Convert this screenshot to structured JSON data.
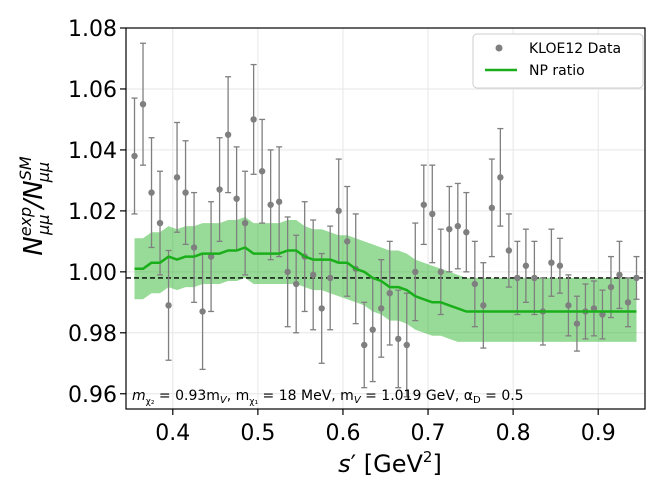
{
  "chart_data": {
    "type": "scatter",
    "title": "",
    "xlabel": {
      "main": "s",
      "prime": "′",
      "unit_open": " [GeV",
      "unit_sup": "2",
      "unit_close": "]"
    },
    "ylabel": {
      "main": "N",
      "sub_num": "μμ",
      "sup_num": "exp",
      "slash": "/N",
      "sub_den": "μμ",
      "sup_den": "SM"
    },
    "xlim": [
      0.345,
      0.955
    ],
    "ylim": [
      0.955,
      1.08
    ],
    "xticks": [
      0.4,
      0.5,
      0.6,
      0.7,
      0.8,
      0.9
    ],
    "xtick_labels": [
      "0.4",
      "0.5",
      "0.6",
      "0.7",
      "0.8",
      "0.9"
    ],
    "yticks": [
      0.96,
      0.98,
      1.0,
      1.02,
      1.04,
      1.06,
      1.08
    ],
    "ytick_labels": [
      "0.96",
      "0.98",
      "1.00",
      "1.02",
      "1.04",
      "1.06",
      "1.08"
    ],
    "grid": true,
    "reference_line": {
      "y": 0.998,
      "style": "dashed",
      "color": "#000000"
    },
    "legend": {
      "position": "top-right",
      "entries": [
        {
          "label": "KLOE12 Data",
          "marker": "dot",
          "color": "#7f7f7f"
        },
        {
          "label": "NP ratio",
          "marker": "line",
          "color": "#1aaf1a"
        }
      ]
    },
    "annotation": {
      "m_chi2": "m",
      "m_chi2_sub": "χ₂",
      "m_chi2_eq": " = 0.93m",
      "m_chi2_V": "V",
      "m_chi1": ", m",
      "m_chi1_sub": "χ₁",
      "m_chi1_eq": " = 18 MeV, m",
      "m_V_sub": "V",
      "m_V_eq": " = 1.019 GeV,  α",
      "alpha_sub": "D",
      "alpha_eq": " = 0.5"
    },
    "series": [
      {
        "name": "KLOE12 Data",
        "kind": "errorbar",
        "color": "#7f7f7f",
        "x": [
          0.355,
          0.365,
          0.375,
          0.385,
          0.395,
          0.405,
          0.415,
          0.425,
          0.435,
          0.445,
          0.455,
          0.465,
          0.475,
          0.485,
          0.495,
          0.505,
          0.515,
          0.525,
          0.535,
          0.545,
          0.555,
          0.565,
          0.575,
          0.585,
          0.595,
          0.605,
          0.615,
          0.625,
          0.635,
          0.645,
          0.655,
          0.665,
          0.675,
          0.685,
          0.695,
          0.705,
          0.715,
          0.725,
          0.735,
          0.745,
          0.755,
          0.765,
          0.775,
          0.785,
          0.795,
          0.805,
          0.815,
          0.825,
          0.835,
          0.845,
          0.855,
          0.865,
          0.875,
          0.885,
          0.895,
          0.905,
          0.915,
          0.925,
          0.935,
          0.945
        ],
        "y": [
          1.038,
          1.055,
          1.026,
          1.016,
          0.989,
          1.031,
          1.026,
          1.008,
          0.987,
          1.005,
          1.027,
          1.045,
          1.024,
          1.016,
          1.05,
          1.033,
          1.022,
          1.023,
          1.0,
          0.996,
          1.005,
          0.999,
          0.988,
          0.998,
          1.02,
          1.01,
          1.001,
          0.976,
          0.981,
          0.988,
          0.993,
          0.978,
          0.976,
          1.0,
          1.022,
          1.019,
          1.0,
          1.014,
          1.015,
          1.013,
          0.996,
          0.989,
          1.021,
          1.031,
          1.007,
          0.998,
          1.002,
          0.998,
          0.987,
          1.003,
          1.002,
          0.989,
          0.983,
          0.987,
          0.988,
          0.986,
          0.995,
          0.999,
          0.99,
          0.998
        ],
        "err": [
          0.019,
          0.02,
          0.018,
          0.017,
          0.018,
          0.018,
          0.017,
          0.018,
          0.019,
          0.018,
          0.017,
          0.019,
          0.017,
          0.017,
          0.018,
          0.017,
          0.018,
          0.018,
          0.018,
          0.016,
          0.018,
          0.018,
          0.018,
          0.017,
          0.017,
          0.018,
          0.018,
          0.014,
          0.017,
          0.016,
          0.017,
          0.016,
          0.017,
          0.016,
          0.013,
          0.016,
          0.014,
          0.014,
          0.014,
          0.013,
          0.014,
          0.014,
          0.016,
          0.016,
          0.012,
          0.012,
          0.012,
          0.012,
          0.011,
          0.011,
          0.009,
          0.01,
          0.009,
          0.009,
          0.009,
          0.008,
          0.01,
          0.011,
          0.008,
          0.007
        ]
      },
      {
        "name": "NP ratio",
        "kind": "line",
        "color": "#1aaf1a",
        "x": [
          0.355,
          0.365,
          0.375,
          0.385,
          0.395,
          0.405,
          0.415,
          0.425,
          0.435,
          0.445,
          0.455,
          0.465,
          0.475,
          0.485,
          0.495,
          0.505,
          0.515,
          0.525,
          0.535,
          0.545,
          0.555,
          0.565,
          0.575,
          0.585,
          0.595,
          0.605,
          0.615,
          0.625,
          0.635,
          0.645,
          0.655,
          0.665,
          0.675,
          0.685,
          0.695,
          0.705,
          0.715,
          0.725,
          0.735,
          0.745,
          0.755,
          0.765,
          0.775,
          0.785,
          0.795,
          0.805,
          0.815,
          0.825,
          0.835,
          0.845,
          0.855,
          0.865,
          0.875,
          0.885,
          0.895,
          0.905,
          0.915,
          0.925,
          0.935,
          0.945
        ],
        "y": [
          1.001,
          1.001,
          1.003,
          1.003,
          1.005,
          1.004,
          1.005,
          1.005,
          1.006,
          1.006,
          1.006,
          1.007,
          1.007,
          1.008,
          1.006,
          1.006,
          1.006,
          1.006,
          1.007,
          1.007,
          1.005,
          1.004,
          1.004,
          1.004,
          1.003,
          1.003,
          1.001,
          1.0,
          0.998,
          0.997,
          0.995,
          0.995,
          0.994,
          0.992,
          0.991,
          0.99,
          0.99,
          0.989,
          0.988,
          0.987,
          0.987,
          0.987,
          0.987,
          0.987,
          0.987,
          0.987,
          0.987,
          0.987,
          0.987,
          0.987,
          0.987,
          0.987,
          0.987,
          0.987,
          0.987,
          0.987,
          0.987,
          0.987,
          0.987,
          0.987
        ],
        "band_low": [
          0.991,
          0.991,
          0.993,
          0.993,
          0.995,
          0.994,
          0.995,
          0.995,
          0.996,
          0.996,
          0.996,
          0.997,
          0.997,
          0.998,
          0.996,
          0.996,
          0.996,
          0.996,
          0.996,
          0.996,
          0.995,
          0.994,
          0.994,
          0.993,
          0.992,
          0.991,
          0.99,
          0.989,
          0.987,
          0.986,
          0.984,
          0.984,
          0.983,
          0.981,
          0.98,
          0.979,
          0.979,
          0.978,
          0.977,
          0.977,
          0.977,
          0.977,
          0.977,
          0.977,
          0.977,
          0.977,
          0.977,
          0.977,
          0.977,
          0.977,
          0.977,
          0.977,
          0.977,
          0.977,
          0.977,
          0.977,
          0.977,
          0.977,
          0.977,
          0.977
        ],
        "band_high": [
          1.011,
          1.011,
          1.013,
          1.013,
          1.015,
          1.014,
          1.015,
          1.015,
          1.016,
          1.016,
          1.016,
          1.017,
          1.017,
          1.018,
          1.016,
          1.016,
          1.016,
          1.016,
          1.017,
          1.017,
          1.015,
          1.014,
          1.014,
          1.013,
          1.012,
          1.012,
          1.011,
          1.01,
          1.009,
          1.008,
          1.007,
          1.007,
          1.006,
          1.004,
          1.003,
          1.002,
          1.001,
          1.0,
          0.999,
          0.998,
          0.998,
          0.998,
          0.998,
          0.998,
          0.998,
          0.998,
          0.998,
          0.998,
          0.998,
          0.998,
          0.998,
          0.998,
          0.998,
          0.998,
          0.998,
          0.998,
          0.998,
          0.998,
          0.998,
          0.998
        ]
      }
    ]
  }
}
